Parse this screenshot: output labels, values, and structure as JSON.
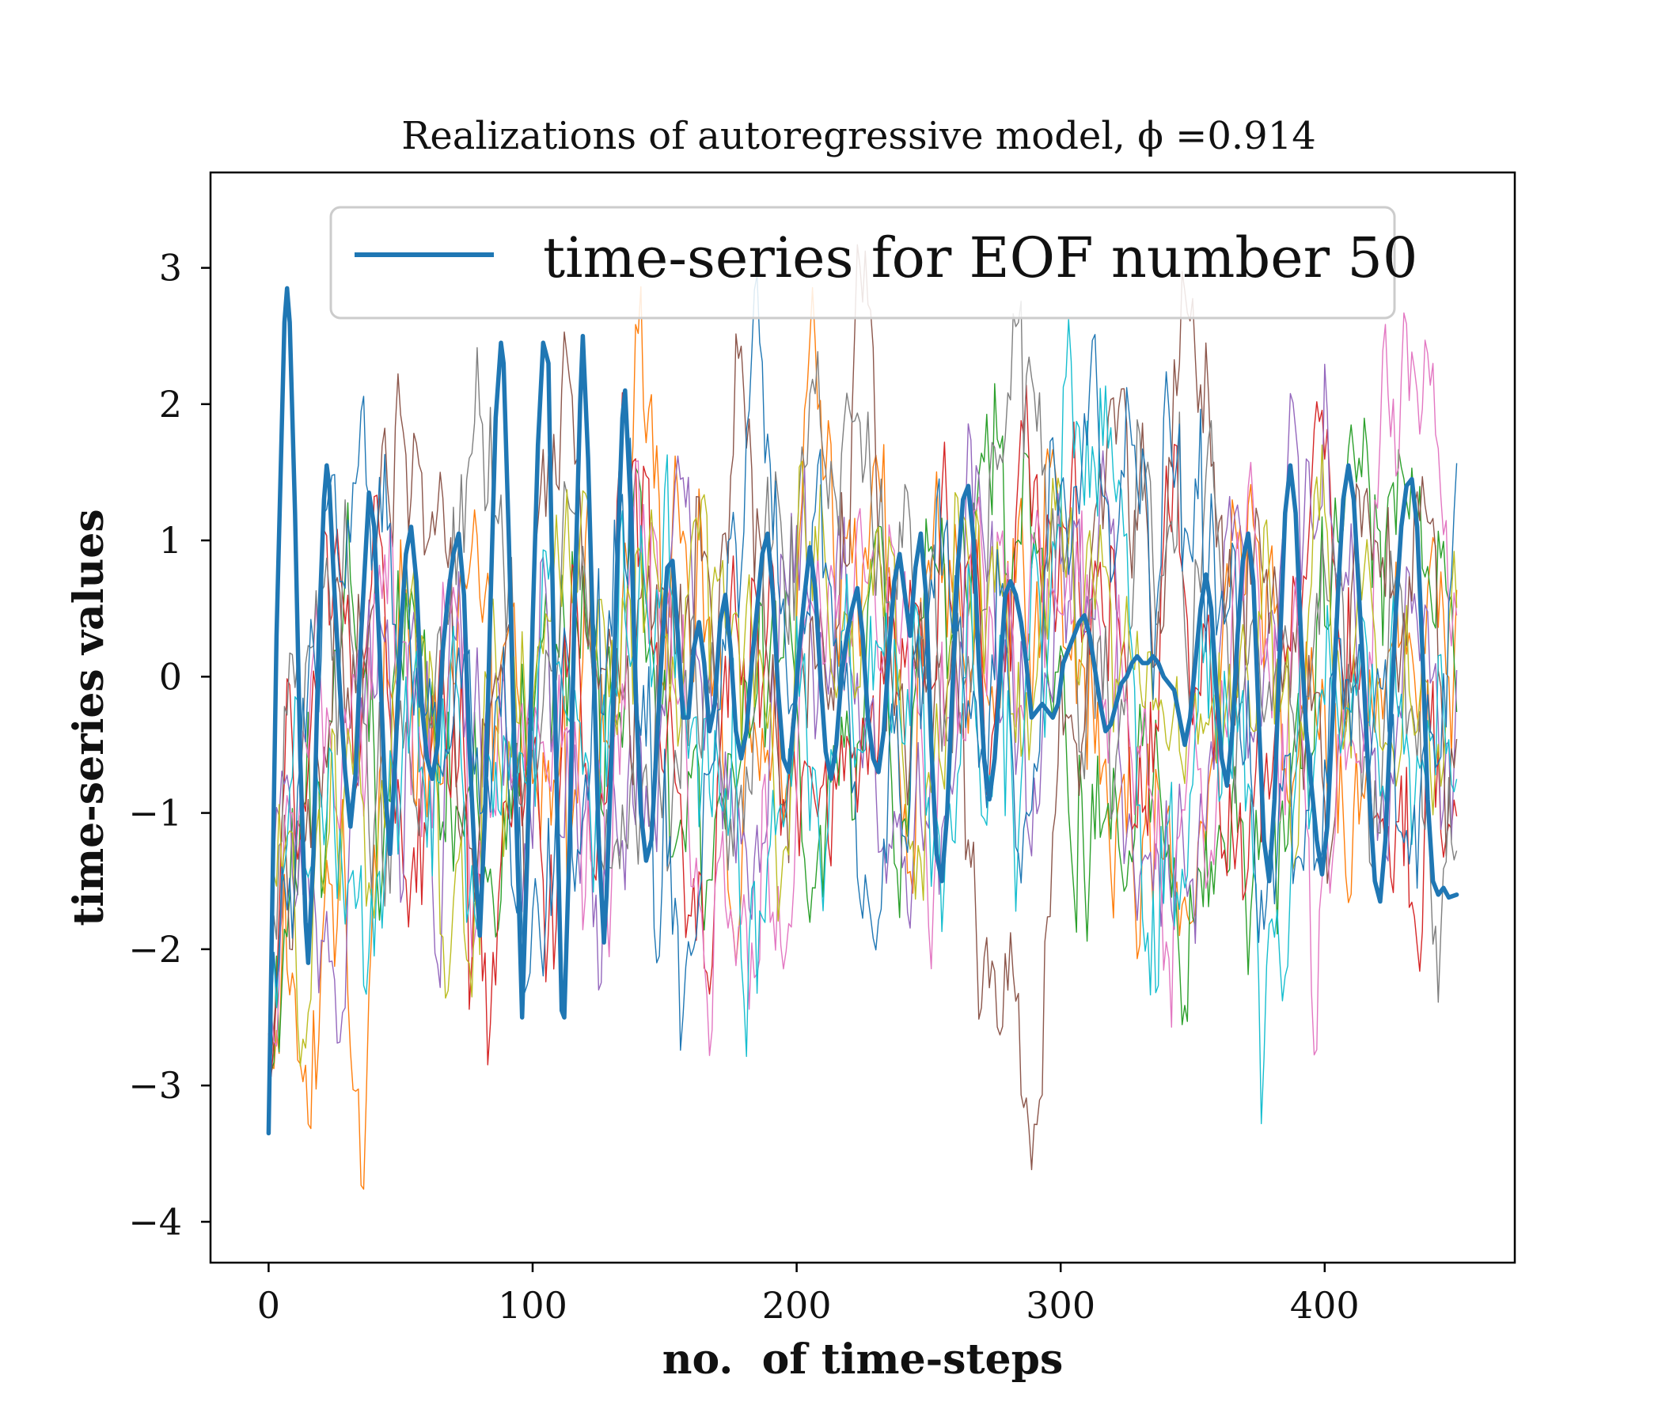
{
  "chart_data": {
    "type": "line",
    "title": "Realizations of autoregressive model, ϕ =0.914",
    "xlabel": "no.  of time-steps",
    "ylabel": "time-series values",
    "xlim": [
      -22,
      472
    ],
    "ylim": [
      -4.3,
      3.7
    ],
    "xticks": [
      0,
      100,
      200,
      300,
      400
    ],
    "xtick_labels": [
      "0",
      "100",
      "200",
      "300",
      "400"
    ],
    "yticks": [
      3,
      2,
      1,
      0,
      -1,
      -2,
      -3,
      -4
    ],
    "ytick_labels": [
      "3",
      "2",
      "1",
      "0",
      "−1",
      "−2",
      "−3",
      "−4"
    ],
    "grid": false,
    "legend": {
      "position": "top-center",
      "entries": [
        "time-series for EOF number 50"
      ]
    },
    "n_points": 451,
    "highlighted_series": {
      "name": "time-series for EOF number 50",
      "color": "#1f77b4",
      "points": [
        [
          0,
          -3.35
        ],
        [
          3,
          0.3
        ],
        [
          6,
          2.6
        ],
        [
          7,
          2.85
        ],
        [
          8,
          2.6
        ],
        [
          10,
          1.2
        ],
        [
          12,
          -0.6
        ],
        [
          14,
          -1.8
        ],
        [
          15,
          -2.1
        ],
        [
          17,
          -1.3
        ],
        [
          19,
          0.3
        ],
        [
          21,
          1.3
        ],
        [
          22,
          1.55
        ],
        [
          23,
          1.4
        ],
        [
          25,
          0.6
        ],
        [
          27,
          -0.1
        ],
        [
          29,
          -0.7
        ],
        [
          31,
          -1.1
        ],
        [
          33,
          -0.7
        ],
        [
          35,
          0.3
        ],
        [
          37,
          1.0
        ],
        [
          38,
          1.35
        ],
        [
          40,
          1.1
        ],
        [
          42,
          0.2
        ],
        [
          44,
          -0.8
        ],
        [
          46,
          -1.3
        ],
        [
          48,
          -0.6
        ],
        [
          50,
          0.3
        ],
        [
          52,
          0.9
        ],
        [
          54,
          1.1
        ],
        [
          56,
          0.7
        ],
        [
          58,
          -0.2
        ],
        [
          60,
          -0.6
        ],
        [
          62,
          -0.75
        ],
        [
          64,
          -0.5
        ],
        [
          66,
          0.2
        ],
        [
          68,
          0.6
        ],
        [
          70,
          0.9
        ],
        [
          72,
          1.05
        ],
        [
          74,
          0.6
        ],
        [
          76,
          -0.5
        ],
        [
          78,
          -1.3
        ],
        [
          80,
          -1.9
        ],
        [
          82,
          -1.0
        ],
        [
          84,
          0.5
        ],
        [
          86,
          1.9
        ],
        [
          88,
          2.45
        ],
        [
          89,
          2.3
        ],
        [
          91,
          1.0
        ],
        [
          93,
          -0.5
        ],
        [
          95,
          -1.8
        ],
        [
          96,
          -2.5
        ],
        [
          98,
          -1.3
        ],
        [
          100,
          0.4
        ],
        [
          102,
          1.7
        ],
        [
          104,
          2.45
        ],
        [
          106,
          2.3
        ],
        [
          107,
          1.2
        ],
        [
          109,
          -0.7
        ],
        [
          111,
          -2.45
        ],
        [
          112,
          -2.5
        ],
        [
          114,
          -1.2
        ],
        [
          116,
          0.6
        ],
        [
          118,
          2.0
        ],
        [
          119,
          2.5
        ],
        [
          121,
          1.6
        ],
        [
          123,
          0.2
        ],
        [
          125,
          -1.2
        ],
        [
          127,
          -1.95
        ],
        [
          128,
          -1.6
        ],
        [
          130,
          -0.5
        ],
        [
          132,
          0.8
        ],
        [
          134,
          1.9
        ],
        [
          135,
          2.1
        ],
        [
          137,
          1.3
        ],
        [
          139,
          -0.1
        ],
        [
          141,
          -1.0
        ],
        [
          143,
          -1.35
        ],
        [
          145,
          -1.2
        ],
        [
          147,
          -0.5
        ],
        [
          149,
          0.2
        ],
        [
          151,
          0.8
        ],
        [
          153,
          0.85
        ],
        [
          155,
          0.3
        ],
        [
          157,
          -0.3
        ],
        [
          159,
          -0.3
        ],
        [
          161,
          0.2
        ],
        [
          163,
          0.4
        ],
        [
          165,
          0.1
        ],
        [
          167,
          -0.4
        ],
        [
          169,
          -0.2
        ],
        [
          171,
          0.4
        ],
        [
          173,
          0.6
        ],
        [
          175,
          0.2
        ],
        [
          177,
          -0.4
        ],
        [
          179,
          -0.6
        ],
        [
          181,
          -0.4
        ],
        [
          183,
          0.1
        ],
        [
          185,
          0.5
        ],
        [
          187,
          0.9
        ],
        [
          189,
          1.05
        ],
        [
          191,
          0.6
        ],
        [
          193,
          -0.1
        ],
        [
          195,
          -0.6
        ],
        [
          197,
          -0.7
        ],
        [
          199,
          -0.3
        ],
        [
          201,
          0.2
        ],
        [
          203,
          0.6
        ],
        [
          205,
          0.95
        ],
        [
          207,
          0.65
        ],
        [
          209,
          0.0
        ],
        [
          211,
          -0.55
        ],
        [
          213,
          -0.75
        ],
        [
          215,
          -0.5
        ],
        [
          217,
          0.0
        ],
        [
          219,
          0.3
        ],
        [
          221,
          0.5
        ],
        [
          223,
          0.65
        ],
        [
          225,
          0.3
        ],
        [
          227,
          -0.3
        ],
        [
          229,
          -0.6
        ],
        [
          231,
          -0.7
        ],
        [
          233,
          -0.4
        ],
        [
          235,
          0.2
        ],
        [
          237,
          0.7
        ],
        [
          239,
          0.9
        ],
        [
          241,
          0.6
        ],
        [
          243,
          0.3
        ],
        [
          245,
          0.8
        ],
        [
          247,
          1.05
        ],
        [
          249,
          0.6
        ],
        [
          251,
          -0.5
        ],
        [
          253,
          -1.3
        ],
        [
          255,
          -1.5
        ],
        [
          257,
          -1.0
        ],
        [
          259,
          -0.1
        ],
        [
          261,
          0.8
        ],
        [
          263,
          1.3
        ],
        [
          265,
          1.4
        ],
        [
          267,
          1.0
        ],
        [
          269,
          0.1
        ],
        [
          271,
          -0.6
        ],
        [
          273,
          -0.9
        ],
        [
          275,
          -0.6
        ],
        [
          277,
          0.0
        ],
        [
          279,
          0.6
        ],
        [
          281,
          0.7
        ],
        [
          283,
          0.6
        ],
        [
          285,
          0.4
        ],
        [
          287,
          0.1
        ],
        [
          289,
          -0.3
        ],
        [
          291,
          -0.25
        ],
        [
          293,
          -0.2
        ],
        [
          295,
          -0.25
        ],
        [
          297,
          -0.3
        ],
        [
          299,
          -0.2
        ],
        [
          301,
          0.1
        ],
        [
          303,
          0.2
        ],
        [
          305,
          0.3
        ],
        [
          307,
          0.4
        ],
        [
          309,
          0.45
        ],
        [
          311,
          0.3
        ],
        [
          313,
          0.05
        ],
        [
          315,
          -0.2
        ],
        [
          317,
          -0.4
        ],
        [
          319,
          -0.35
        ],
        [
          321,
          -0.2
        ],
        [
          323,
          -0.05
        ],
        [
          325,
          0.0
        ],
        [
          327,
          0.1
        ],
        [
          329,
          0.15
        ],
        [
          331,
          0.1
        ],
        [
          333,
          0.1
        ],
        [
          335,
          0.15
        ],
        [
          337,
          0.1
        ],
        [
          339,
          0.0
        ],
        [
          341,
          -0.05
        ],
        [
          343,
          -0.1
        ],
        [
          345,
          -0.3
        ],
        [
          347,
          -0.5
        ],
        [
          349,
          -0.3
        ],
        [
          351,
          0.1
        ],
        [
          353,
          0.5
        ],
        [
          355,
          0.75
        ],
        [
          357,
          0.5
        ],
        [
          359,
          -0.1
        ],
        [
          361,
          -0.6
        ],
        [
          363,
          -0.8
        ],
        [
          365,
          -0.4
        ],
        [
          367,
          0.3
        ],
        [
          369,
          0.85
        ],
        [
          371,
          1.05
        ],
        [
          373,
          0.7
        ],
        [
          375,
          -0.3
        ],
        [
          377,
          -1.2
        ],
        [
          379,
          -1.5
        ],
        [
          381,
          -0.9
        ],
        [
          383,
          0.2
        ],
        [
          385,
          1.2
        ],
        [
          387,
          1.55
        ],
        [
          389,
          1.2
        ],
        [
          391,
          0.3
        ],
        [
          393,
          -0.4
        ],
        [
          395,
          -0.8
        ],
        [
          397,
          -1.2
        ],
        [
          399,
          -1.45
        ],
        [
          401,
          -1.1
        ],
        [
          403,
          -0.3
        ],
        [
          405,
          0.6
        ],
        [
          407,
          1.3
        ],
        [
          409,
          1.55
        ],
        [
          411,
          1.3
        ],
        [
          413,
          0.6
        ],
        [
          415,
          -0.1
        ],
        [
          417,
          -0.9
        ],
        [
          419,
          -1.5
        ],
        [
          421,
          -1.65
        ],
        [
          423,
          -1.2
        ],
        [
          425,
          -0.3
        ],
        [
          427,
          0.5
        ],
        [
          429,
          1.1
        ],
        [
          431,
          1.4
        ],
        [
          433,
          1.45
        ],
        [
          435,
          1.1
        ],
        [
          437,
          0.2
        ],
        [
          439,
          -0.9
        ],
        [
          441,
          -1.5
        ],
        [
          443,
          -1.6
        ],
        [
          445,
          -1.55
        ],
        [
          447,
          -1.62
        ],
        [
          450,
          -1.6
        ]
      ]
    },
    "background_series": {
      "count": 10,
      "colors": [
        "#ff7f0e",
        "#2ca02c",
        "#d62728",
        "#9467bd",
        "#8c564b",
        "#e377c2",
        "#7f7f7f",
        "#bcbd22",
        "#17becf",
        "#1f77b4"
      ],
      "start_value": -3.0,
      "phi": 0.914
    }
  }
}
